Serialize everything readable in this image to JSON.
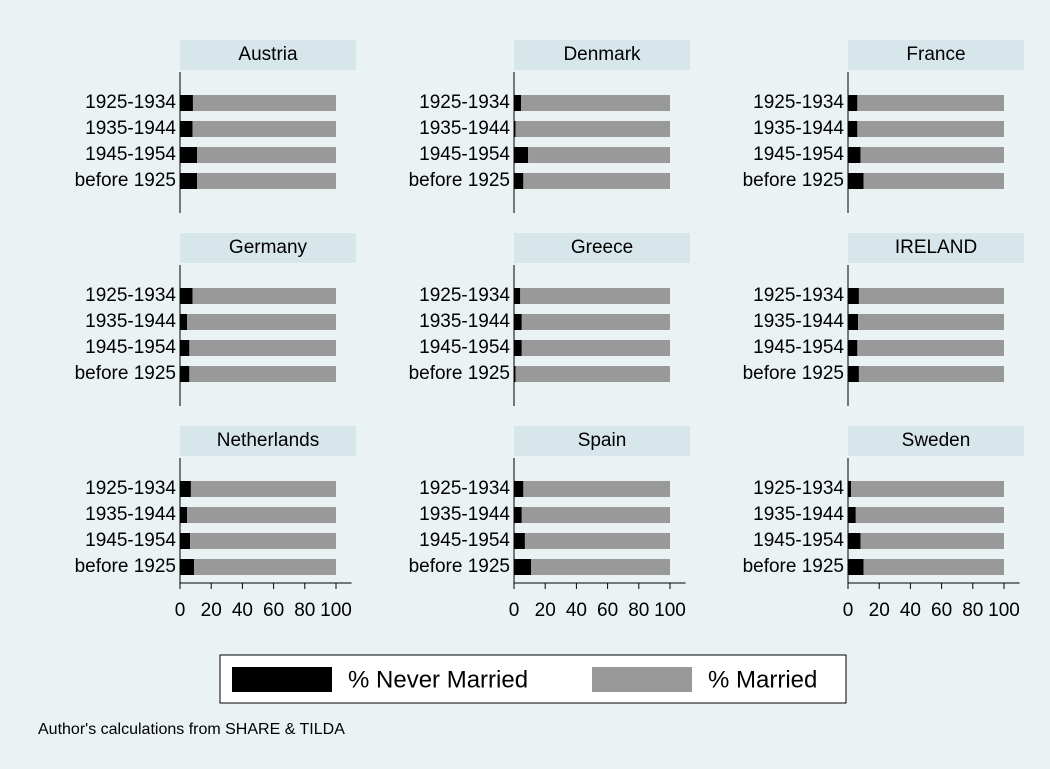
{
  "chart_data": [
    {
      "type": "stacked-barh",
      "title": "Austria",
      "categories": [
        "1925-1934",
        "1935-1944",
        "1945-1954",
        "before 1925"
      ],
      "series": [
        {
          "name": "% Never Married",
          "color": "#000000",
          "values": [
            8.3,
            8,
            11,
            11
          ]
        },
        {
          "name": "% Married",
          "color": "#999999",
          "values": [
            91.7,
            92,
            89,
            89
          ]
        }
      ],
      "xlim": [
        0,
        110
      ]
    },
    {
      "type": "stacked-barh",
      "title": "Denmark",
      "categories": [
        "1925-1934",
        "1935-1944",
        "1945-1954",
        "before 1925"
      ],
      "series": [
        {
          "name": "% Never Married",
          "color": "#000000",
          "values": [
            4.5,
            1,
            9,
            6
          ]
        },
        {
          "name": "% Married",
          "color": "#999999",
          "values": [
            95.5,
            99,
            91,
            94
          ]
        }
      ],
      "xlim": [
        0,
        110
      ]
    },
    {
      "type": "stacked-barh",
      "title": "France",
      "categories": [
        "1925-1934",
        "1935-1944",
        "1945-1954",
        "before 1925"
      ],
      "series": [
        {
          "name": "% Never Married",
          "color": "#000000",
          "values": [
            6,
            6,
            8,
            10
          ]
        },
        {
          "name": "% Married",
          "color": "#999999",
          "values": [
            94,
            94,
            92,
            90
          ]
        }
      ],
      "xlim": [
        0,
        110
      ]
    },
    {
      "type": "stacked-barh",
      "title": "Germany",
      "categories": [
        "1925-1934",
        "1935-1944",
        "1945-1954",
        "before 1925"
      ],
      "series": [
        {
          "name": "% Never Married",
          "color": "#000000",
          "values": [
            8,
            4.5,
            6,
            6
          ]
        },
        {
          "name": "% Married",
          "color": "#999999",
          "values": [
            92,
            95.5,
            94,
            94
          ]
        }
      ],
      "xlim": [
        0,
        110
      ]
    },
    {
      "type": "stacked-barh",
      "title": "Greece",
      "categories": [
        "1925-1934",
        "1935-1944",
        "1945-1954",
        "before 1925"
      ],
      "series": [
        {
          "name": "% Never Married",
          "color": "#000000",
          "values": [
            4,
            5,
            5,
            1
          ]
        },
        {
          "name": "% Married",
          "color": "#999999",
          "values": [
            96,
            95,
            95,
            99
          ]
        }
      ],
      "xlim": [
        0,
        110
      ]
    },
    {
      "type": "stacked-barh",
      "title": "IRELAND",
      "categories": [
        "1925-1934",
        "1935-1944",
        "1945-1954",
        "before 1925"
      ],
      "series": [
        {
          "name": "% Never Married",
          "color": "#000000",
          "values": [
            7,
            6.5,
            6,
            7
          ]
        },
        {
          "name": "% Married",
          "color": "#999999",
          "values": [
            93,
            93.5,
            94,
            93
          ]
        }
      ],
      "xlim": [
        0,
        110
      ]
    },
    {
      "type": "stacked-barh",
      "title": "Netherlands",
      "categories": [
        "1925-1934",
        "1935-1944",
        "1945-1954",
        "before 1925"
      ],
      "series": [
        {
          "name": "% Never Married",
          "color": "#000000",
          "values": [
            7,
            4.5,
            6.5,
            9
          ]
        },
        {
          "name": "% Married",
          "color": "#999999",
          "values": [
            93,
            95.5,
            93.5,
            91
          ]
        }
      ],
      "xlim": [
        0,
        110
      ],
      "xticks": [
        0,
        20,
        40,
        60,
        80,
        100
      ]
    },
    {
      "type": "stacked-barh",
      "title": "Spain",
      "categories": [
        "1925-1934",
        "1935-1944",
        "1945-1954",
        "before 1925"
      ],
      "series": [
        {
          "name": "% Never Married",
          "color": "#000000",
          "values": [
            6,
            5,
            7,
            11
          ]
        },
        {
          "name": "% Married",
          "color": "#999999",
          "values": [
            94,
            95,
            93,
            89
          ]
        }
      ],
      "xlim": [
        0,
        110
      ],
      "xticks": [
        0,
        20,
        40,
        60,
        80,
        100
      ]
    },
    {
      "type": "stacked-barh",
      "title": "Sweden",
      "categories": [
        "1925-1934",
        "1935-1944",
        "1945-1954",
        "before 1925"
      ],
      "series": [
        {
          "name": "% Never Married",
          "color": "#000000",
          "values": [
            2,
            5,
            8,
            10
          ]
        },
        {
          "name": "% Married",
          "color": "#999999",
          "values": [
            98,
            95,
            92,
            90
          ]
        }
      ],
      "xlim": [
        0,
        110
      ],
      "xticks": [
        0,
        20,
        40,
        60,
        80,
        100
      ]
    }
  ],
  "note": "Author's calculations from SHARE & TILDA"
}
